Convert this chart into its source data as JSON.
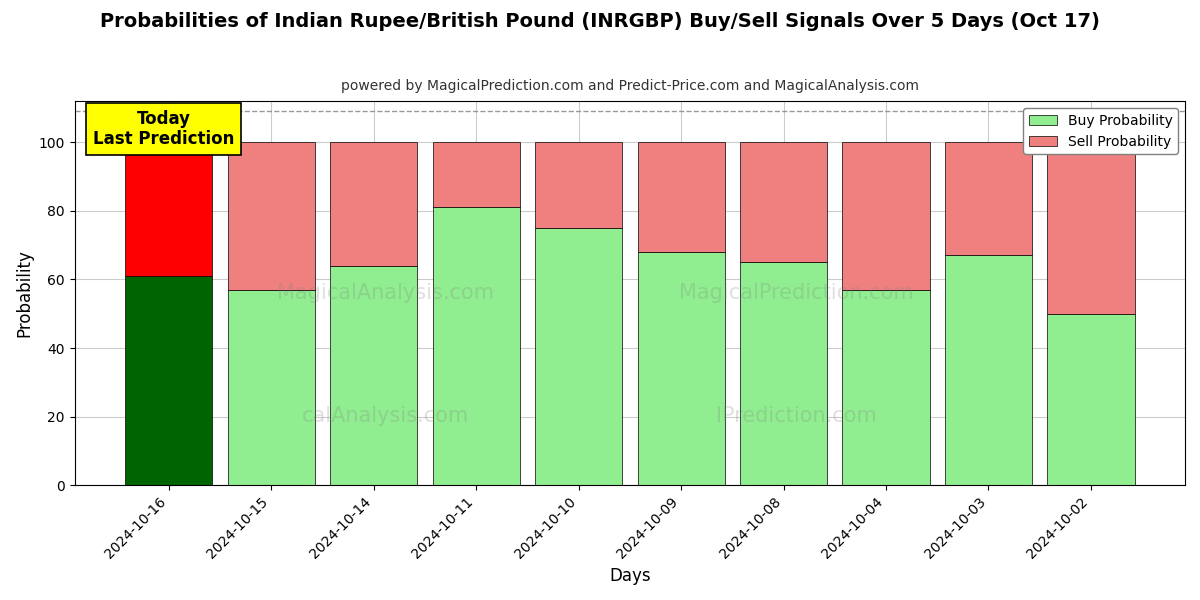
{
  "title": "Probabilities of Indian Rupee/British Pound (INRGBP) Buy/Sell Signals Over 5 Days (Oct 17)",
  "subtitle": "powered by MagicalPrediction.com and Predict-Price.com and MagicalAnalysis.com",
  "xlabel": "Days",
  "ylabel": "Probability",
  "dates": [
    "2024-10-16",
    "2024-10-15",
    "2024-10-14",
    "2024-10-11",
    "2024-10-10",
    "2024-10-09",
    "2024-10-08",
    "2024-10-04",
    "2024-10-03",
    "2024-10-02"
  ],
  "buy_values": [
    61,
    57,
    64,
    81,
    75,
    68,
    65,
    57,
    67,
    50
  ],
  "sell_values": [
    39,
    43,
    36,
    19,
    25,
    32,
    35,
    43,
    33,
    50
  ],
  "today_buy_color": "#006400",
  "today_sell_color": "#FF0000",
  "buy_color": "#90EE90",
  "sell_color": "#F08080",
  "ylim": [
    0,
    112
  ],
  "yticks": [
    0,
    20,
    40,
    60,
    80,
    100
  ],
  "dashed_line_y": 109,
  "annotation_text": "Today\nLast Prediction",
  "annotation_bgcolor": "#FFFF00",
  "legend_buy_label": "Buy Probability",
  "legend_sell_label": "Sell Probability",
  "background_color": "#ffffff",
  "grid_color": "#cccccc"
}
